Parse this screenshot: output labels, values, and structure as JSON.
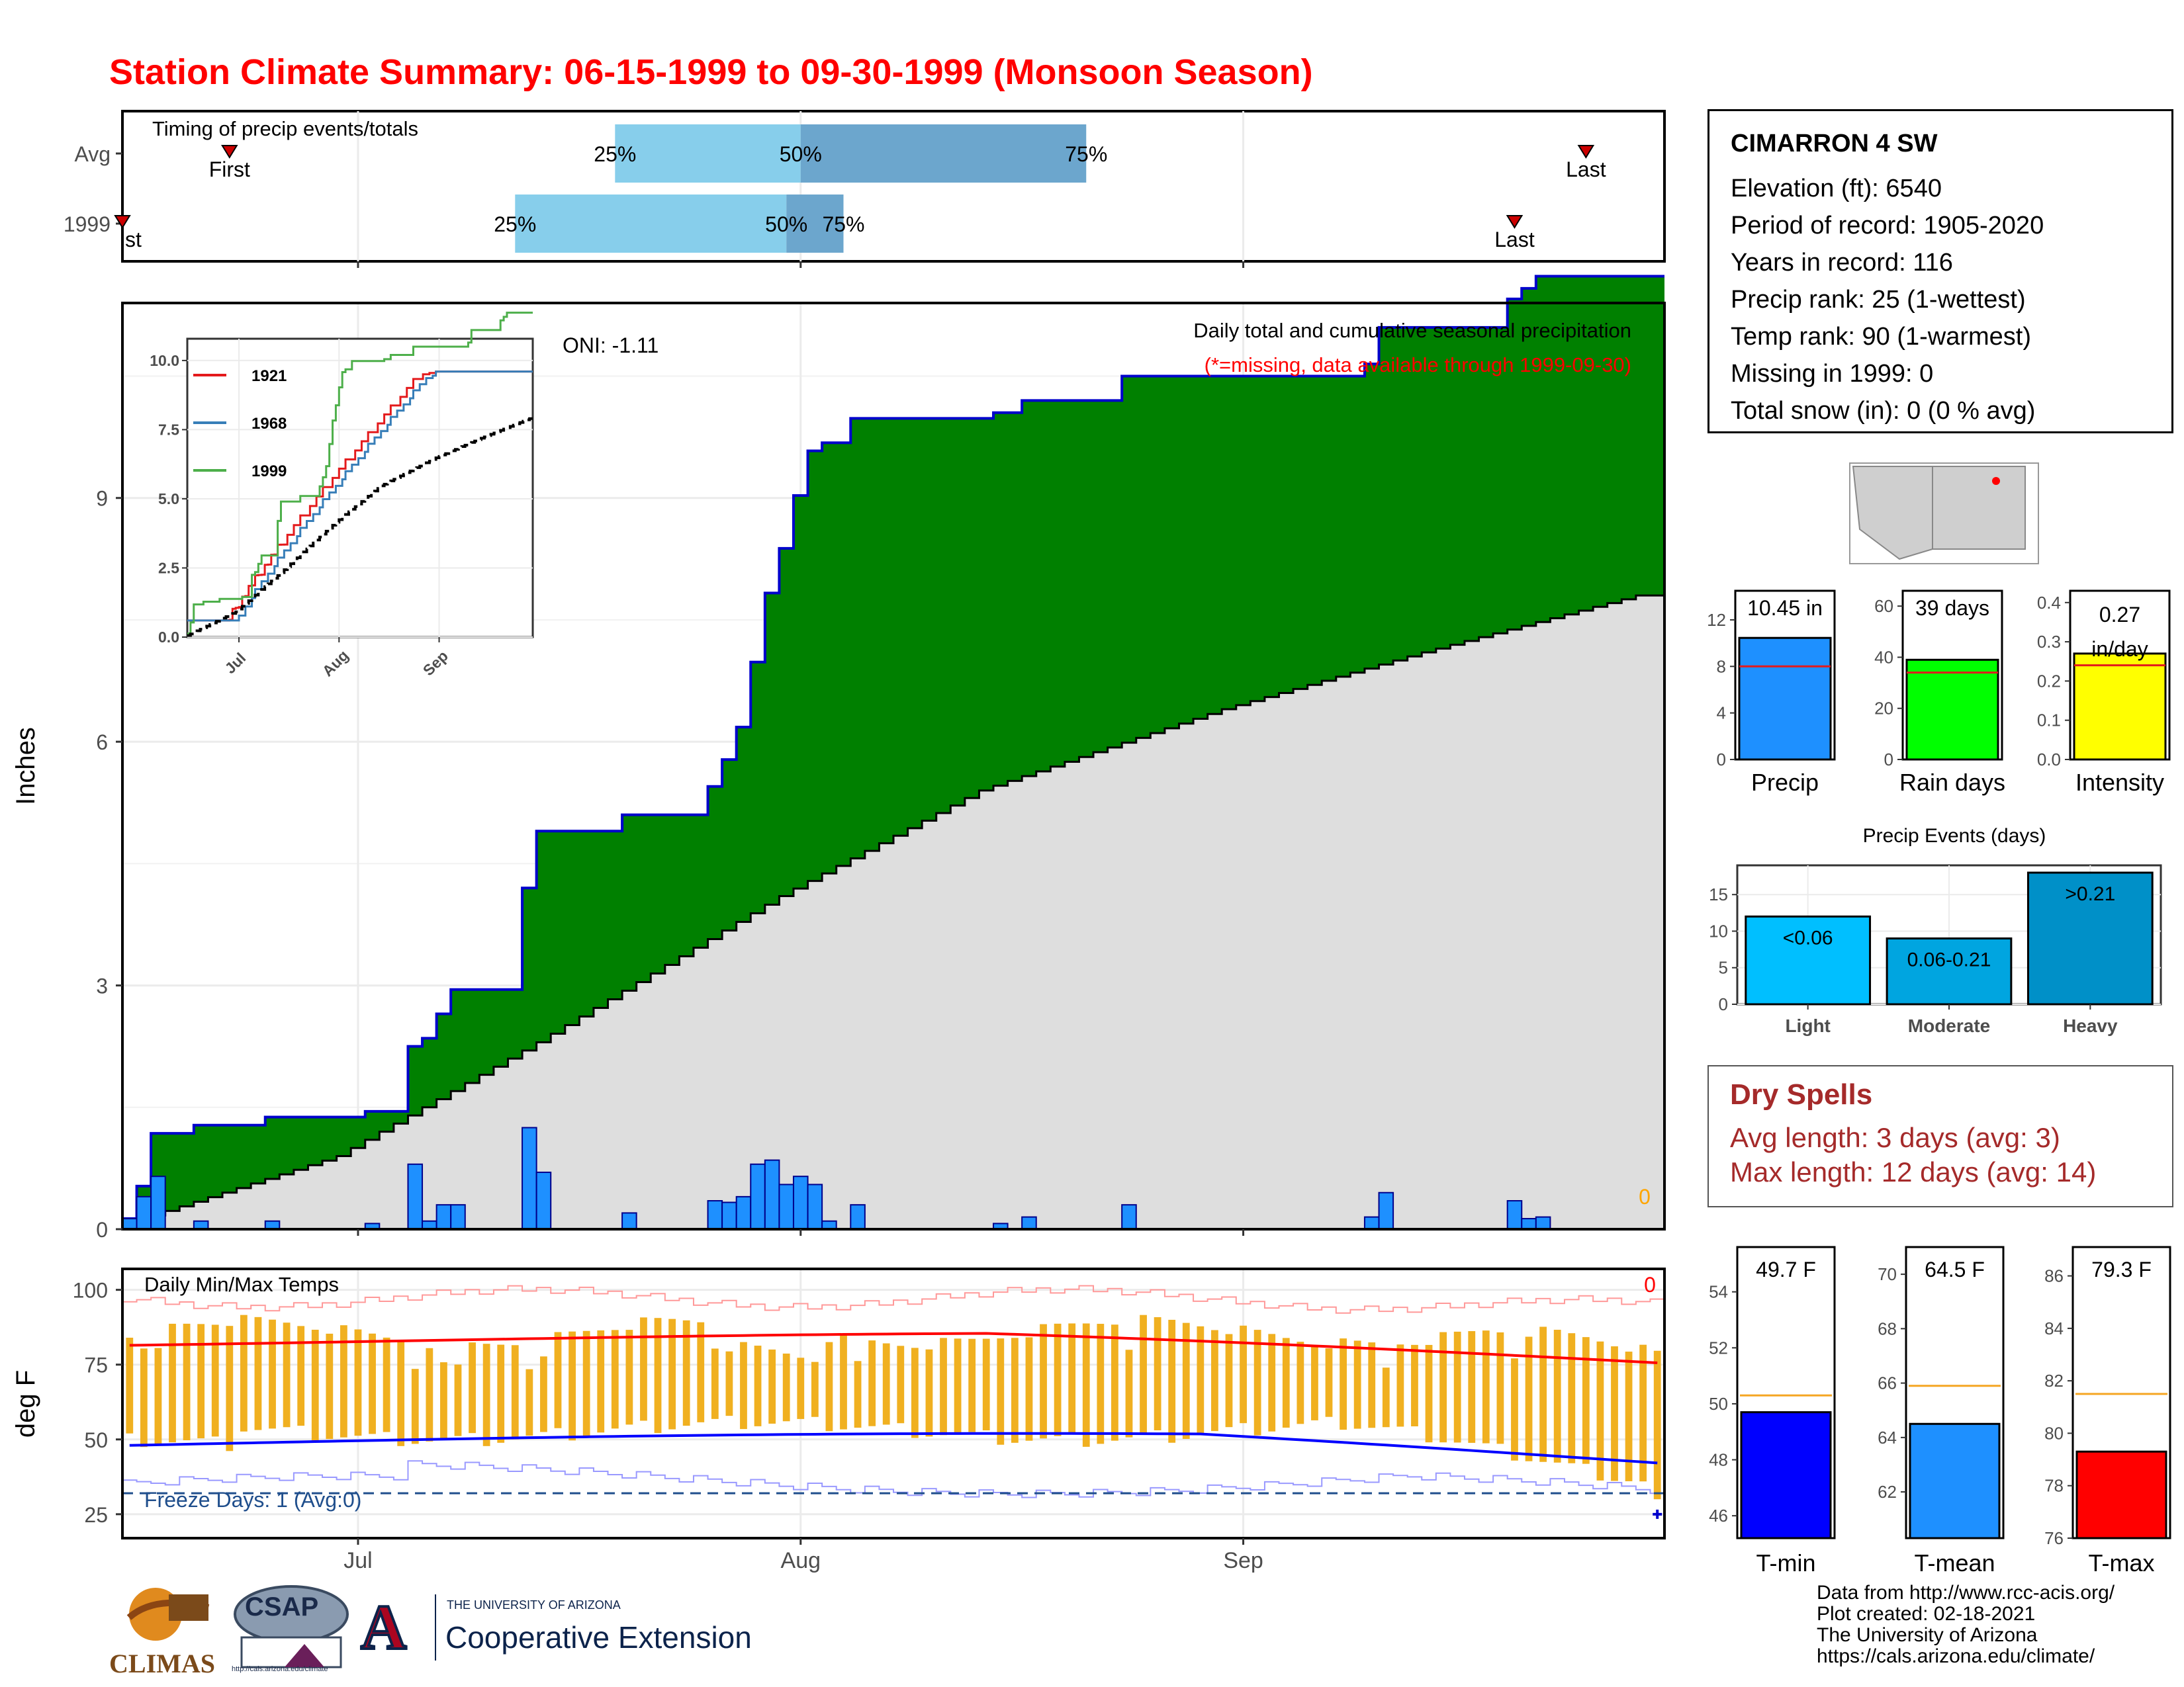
{
  "title": "Station Climate Summary: 06-15-1999 to 09-30-1999 (Monsoon Season)",
  "station": {
    "name": "CIMARRON 4 SW",
    "lines": [
      "Elevation (ft): 6540",
      "Period of record: 1905-2020",
      "Years in record: 116",
      "Precip rank: 25 (1-wettest)",
      "Temp rank: 90 (1-warmest)",
      "Missing in 1999: 0",
      "Total snow (in): 0 (0 % avg)"
    ]
  },
  "dry_spells": {
    "title": "Dry Spells",
    "avg": "Avg length: 3 days (avg: 3)",
    "max": "Max length: 12 days (avg: 14)"
  },
  "footer": [
    "Data from http://www.rcc-acis.org/",
    "Plot created: 02-18-2021",
    "The University of Arizona",
    "https://cals.arizona.edu/climate/"
  ],
  "logos": {
    "climas": "CLIMAS",
    "csap": "CSAP",
    "csap_url": "http://cals.arizona.edu/climate",
    "ua_line1": "THE UNIVERSITY OF ARIZONA",
    "ua_line2": "Cooperative Extension",
    "ua_letter": "A"
  },
  "colors": {
    "title": "#ff0000",
    "precip_fill": "#008000",
    "normal_fill": "#dedede",
    "bar_blue": "#1e90ff",
    "temp_orange": "#f0b020",
    "tmax_red": "#ff0000",
    "tmin_blue": "#0000ff",
    "freeze_line": "#1f4e8c"
  },
  "chart_data": [
    {
      "id": "timing",
      "type": "bar",
      "title": "Timing of precip events/totals",
      "rows": [
        {
          "label": "Avg",
          "first": "06-22",
          "q25": "07-19",
          "q50": "08-01",
          "q75": "08-21",
          "last": "09-25"
        },
        {
          "label": "1999",
          "first": "06-15",
          "q25": "07-12",
          "q50": "07-31",
          "q75": "08-04",
          "last": "09-20"
        }
      ],
      "marker_labels": {
        "first": "First",
        "last": "Last",
        "q25": "25%",
        "q50": "50%",
        "q75": "75%"
      },
      "first_label_1999": "st"
    },
    {
      "id": "cumulative_precip",
      "type": "area",
      "title": "Daily total and cumulative seasonal precipitation",
      "subtitle": "(*=missing, data available through 1999-09-30)",
      "oni": "ONI: -1.11",
      "missing_count": "0",
      "ylabel": "Inches",
      "ylim": [
        0,
        11.4
      ],
      "yticks": [
        0,
        3,
        6,
        9
      ],
      "x_start": "1999-06-15",
      "x_end": "1999-09-30",
      "xticks": [
        "Jul",
        "Aug",
        "Sep"
      ],
      "daily_precip": [
        {
          "date": "06-15",
          "value": 0.13
        },
        {
          "date": "06-16",
          "value": 0.4
        },
        {
          "date": "06-17",
          "value": 0.65
        },
        {
          "date": "06-20",
          "value": 0.1
        },
        {
          "date": "06-25",
          "value": 0.1
        },
        {
          "date": "07-02",
          "value": 0.07
        },
        {
          "date": "07-05",
          "value": 0.8
        },
        {
          "date": "07-06",
          "value": 0.1
        },
        {
          "date": "07-07",
          "value": 0.3
        },
        {
          "date": "07-08",
          "value": 0.3
        },
        {
          "date": "07-13",
          "value": 1.25
        },
        {
          "date": "07-14",
          "value": 0.7
        },
        {
          "date": "07-20",
          "value": 0.2
        },
        {
          "date": "07-26",
          "value": 0.35
        },
        {
          "date": "07-27",
          "value": 0.33
        },
        {
          "date": "07-28",
          "value": 0.4
        },
        {
          "date": "07-29",
          "value": 0.8
        },
        {
          "date": "07-30",
          "value": 0.85
        },
        {
          "date": "07-31",
          "value": 0.55
        },
        {
          "date": "08-01",
          "value": 0.65
        },
        {
          "date": "08-02",
          "value": 0.55
        },
        {
          "date": "08-03",
          "value": 0.1
        },
        {
          "date": "08-05",
          "value": 0.3
        },
        {
          "date": "08-15",
          "value": 0.07
        },
        {
          "date": "08-17",
          "value": 0.15
        },
        {
          "date": "08-24",
          "value": 0.3
        },
        {
          "date": "09-10",
          "value": 0.15
        },
        {
          "date": "09-11",
          "value": 0.45
        },
        {
          "date": "09-20",
          "value": 0.35
        },
        {
          "date": "09-21",
          "value": 0.13
        },
        {
          "date": "09-22",
          "value": 0.15
        }
      ],
      "normal_cumulative": [
        {
          "date": "06-15",
          "value": 0.0
        },
        {
          "date": "07-01",
          "value": 0.9
        },
        {
          "date": "07-15",
          "value": 2.3
        },
        {
          "date": "08-01",
          "value": 4.1
        },
        {
          "date": "08-15",
          "value": 5.4
        },
        {
          "date": "09-01",
          "value": 6.4
        },
        {
          "date": "09-15",
          "value": 7.1
        },
        {
          "date": "09-30",
          "value": 7.8
        }
      ],
      "series": [
        {
          "name": "1999 cumulative",
          "total": 10.45
        },
        {
          "name": "Normal cumulative",
          "total": 7.8
        }
      ]
    },
    {
      "id": "inset_cumulative",
      "type": "line",
      "ylim": [
        0,
        10.5
      ],
      "yticks": [
        "0.0",
        "2.5",
        "5.0",
        "7.5",
        "10.0"
      ],
      "xticks": [
        "Jul",
        "Aug",
        "Sep"
      ],
      "series": [
        {
          "name": "1921",
          "color": "#e41a1c",
          "end": 9.6
        },
        {
          "name": "1968",
          "color": "#377eb8",
          "end": 9.6
        },
        {
          "name": "1999",
          "color": "#4daf4a",
          "end": 10.45
        },
        {
          "name": "",
          "color": "#000000",
          "dashed": true,
          "end": 7.9
        }
      ]
    },
    {
      "id": "temps",
      "type": "bar",
      "title": "Daily Min/Max Temps",
      "missing_count": "0",
      "ylabel": "deg F",
      "ylim": [
        17,
        107
      ],
      "yticks": [
        25,
        50,
        75,
        100
      ],
      "freeze_line": 32,
      "freeze_label": "Freeze Days: 1 (Avg:0)",
      "xticks": [
        "Jul",
        "Aug",
        "Sep"
      ],
      "normal_tmax": 82,
      "normal_tmin": 49
    },
    {
      "id": "precip_summary",
      "type": "bar",
      "panels": [
        {
          "category": "Precip",
          "value": 10.45,
          "label": "10.45 in",
          "avg": 8.0,
          "ylim": [
            0,
            14.5
          ],
          "yticks": [
            0,
            4,
            8,
            12
          ],
          "color": "#1e90ff"
        },
        {
          "category": "Rain days",
          "value": 39,
          "label": "39 days",
          "avg": 34,
          "ylim": [
            0,
            66
          ],
          "yticks": [
            0,
            20,
            40,
            60
          ],
          "color": "#00ff00"
        },
        {
          "category": "Intensity",
          "value": 0.27,
          "label": "0.27 in/day",
          "avg": 0.24,
          "ylim": [
            0,
            0.43
          ],
          "yticks": [
            "0.0",
            "0.1",
            "0.2",
            "0.3",
            "0.4"
          ],
          "color": "#ffff00"
        }
      ]
    },
    {
      "id": "precip_events",
      "type": "bar",
      "title": "Precip Events (days)",
      "categories": [
        "Light",
        "Moderate",
        "Heavy"
      ],
      "values": [
        12,
        9,
        18
      ],
      "labels": [
        "<0.06",
        "0.06-0.21",
        ">0.21"
      ],
      "colors": [
        "#00bfff",
        "#00a5e0",
        "#0090c8"
      ],
      "ylim": [
        0,
        19
      ],
      "yticks": [
        0,
        5,
        10,
        15
      ]
    },
    {
      "id": "temp_summary",
      "type": "bar",
      "panels": [
        {
          "category": "T-min",
          "value": 49.7,
          "label": "49.7 F",
          "avg": 50.3,
          "ylim": [
            45.2,
            55.6
          ],
          "yticks": [
            46,
            48,
            50,
            52,
            54
          ],
          "color": "#0000ff"
        },
        {
          "category": "T-mean",
          "value": 64.5,
          "label": "64.5 F",
          "avg": 65.9,
          "ylim": [
            60.3,
            71.0
          ],
          "yticks": [
            62,
            64,
            66,
            68,
            70
          ],
          "color": "#1e90ff"
        },
        {
          "category": "T-max",
          "value": 79.3,
          "label": "79.3 F",
          "avg": 81.5,
          "ylim": [
            76,
            87.1
          ],
          "yticks": [
            76,
            78,
            80,
            82,
            84,
            86
          ],
          "color": "#ff0000"
        }
      ]
    }
  ]
}
